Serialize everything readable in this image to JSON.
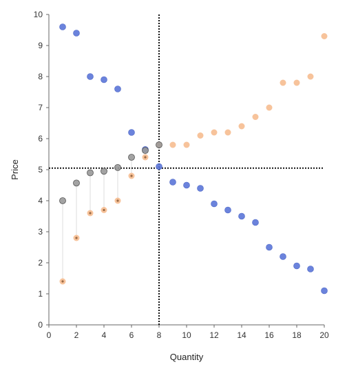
{
  "chart_data": {
    "type": "scatter",
    "title": "",
    "xlabel": "Quantity",
    "ylabel": "Price",
    "xlim": [
      0,
      20
    ],
    "ylim": [
      0,
      10
    ],
    "x_ticks": [
      0,
      2,
      4,
      6,
      8,
      10,
      12,
      14,
      16,
      18,
      20
    ],
    "y_ticks": [
      0,
      1,
      2,
      3,
      4,
      5,
      6,
      7,
      8,
      9,
      10
    ],
    "grid": false,
    "legend": "none",
    "reference_lines": {
      "vertical_x": 8,
      "horizontal_y": 5.05
    },
    "series": [
      {
        "color": "#5b76d8",
        "x": [
          1,
          2,
          3,
          4,
          5,
          6,
          7,
          8,
          9,
          10,
          11,
          12,
          13,
          14,
          15,
          16,
          17,
          18,
          19,
          20
        ],
        "y": [
          9.6,
          9.4,
          8.0,
          7.9,
          7.6,
          6.2,
          5.65,
          5.1,
          4.6,
          4.5,
          4.4,
          3.9,
          3.7,
          3.5,
          3.3,
          2.5,
          2.2,
          1.9,
          1.8,
          1.1
        ]
      },
      {
        "color": "#f6b98a",
        "x": [
          1,
          2,
          3,
          4,
          5,
          6,
          7,
          8,
          9,
          10,
          11,
          12,
          13,
          14,
          15,
          16,
          17,
          18,
          19,
          20
        ],
        "y": [
          1.4,
          2.8,
          3.6,
          3.7,
          4.0,
          4.8,
          5.4,
          5.8,
          5.8,
          5.8,
          6.1,
          6.2,
          6.2,
          6.4,
          6.7,
          7.0,
          7.8,
          7.8,
          8.0,
          9.3
        ]
      },
      {
        "color": "#999999",
        "x": [
          1,
          2,
          3,
          4,
          5,
          6,
          7,
          8
        ],
        "y": [
          4.0,
          4.57,
          4.9,
          4.95,
          5.07,
          5.4,
          5.62,
          5.8
        ]
      }
    ],
    "connectors": {
      "color": "#e2e2e2",
      "x": [
        1,
        2,
        3,
        4,
        5,
        6,
        7
      ],
      "from_y": [
        4.0,
        4.57,
        4.9,
        4.95,
        5.07,
        5.4,
        5.62
      ],
      "to_y": [
        1.4,
        2.8,
        3.6,
        3.7,
        4.0,
        4.8,
        5.4
      ]
    }
  }
}
